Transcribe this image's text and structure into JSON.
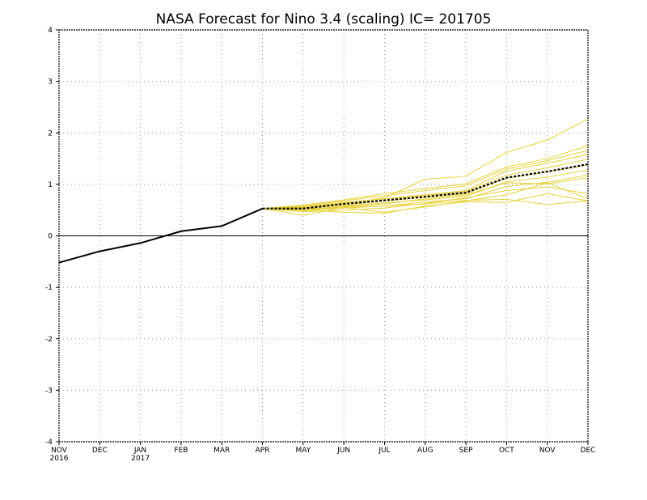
{
  "chart_data": {
    "type": "line",
    "title": "NASA Forecast for Nino 3.4 (scaling) IC= 201705",
    "xlabel": "",
    "ylabel": "",
    "ylim": [
      -4,
      4
    ],
    "yticks": [
      "-4",
      "-3",
      "-2",
      "-1",
      "0",
      "1",
      "2",
      "3",
      "4"
    ],
    "x_ticks": [
      {
        "label": "NOV",
        "sub": "2016"
      },
      {
        "label": "DEC",
        "sub": ""
      },
      {
        "label": "JAN",
        "sub": "2017"
      },
      {
        "label": "FEB",
        "sub": ""
      },
      {
        "label": "MAR",
        "sub": ""
      },
      {
        "label": "APR",
        "sub": ""
      },
      {
        "label": "MAY",
        "sub": ""
      },
      {
        "label": "JUN",
        "sub": ""
      },
      {
        "label": "JUL",
        "sub": ""
      },
      {
        "label": "AUG",
        "sub": ""
      },
      {
        "label": "SEP",
        "sub": ""
      },
      {
        "label": "OCT",
        "sub": ""
      },
      {
        "label": "NOV",
        "sub": ""
      },
      {
        "label": "DEC",
        "sub": ""
      }
    ],
    "grid": true,
    "zero_line": true,
    "colors": {
      "observed": "#000000",
      "members": "#e8d23a",
      "mean": "#000000"
    },
    "observed": {
      "x": [
        "2016-11",
        "2016-12",
        "2017-01",
        "2017-02",
        "2017-03",
        "2017-04"
      ],
      "y": [
        -0.52,
        -0.3,
        -0.14,
        0.09,
        0.19,
        0.53
      ]
    },
    "ensemble_x": [
      "2017-04",
      "2017-05",
      "2017-06",
      "2017-07",
      "2017-08",
      "2017-09",
      "2017-10",
      "2017-11",
      "2017-12"
    ],
    "ensemble_members": [
      [
        0.53,
        0.56,
        0.62,
        0.74,
        1.1,
        1.16,
        1.62,
        1.86,
        2.27
      ],
      [
        0.53,
        0.6,
        0.7,
        0.82,
        0.92,
        1.01,
        1.34,
        1.5,
        1.75
      ],
      [
        0.53,
        0.58,
        0.68,
        0.78,
        0.88,
        0.97,
        1.3,
        1.46,
        1.66
      ],
      [
        0.53,
        0.55,
        0.64,
        0.72,
        0.8,
        0.88,
        1.26,
        1.41,
        1.58
      ],
      [
        0.53,
        0.57,
        0.65,
        0.72,
        0.78,
        0.86,
        1.18,
        1.32,
        1.49
      ],
      [
        0.53,
        0.54,
        0.6,
        0.68,
        0.75,
        0.82,
        1.12,
        1.24,
        1.38
      ],
      [
        0.53,
        0.5,
        0.58,
        0.64,
        0.7,
        0.77,
        1.05,
        1.14,
        1.28
      ],
      [
        0.53,
        0.49,
        0.54,
        0.58,
        0.66,
        0.72,
        0.96,
        1.04,
        1.18
      ],
      [
        0.53,
        0.52,
        0.57,
        0.62,
        0.72,
        0.8,
        1.03,
        1.01,
        1.13
      ],
      [
        0.53,
        0.47,
        0.5,
        0.54,
        0.63,
        0.74,
        0.88,
        0.95,
        0.82
      ],
      [
        0.53,
        0.4,
        0.55,
        0.46,
        0.56,
        0.68,
        0.8,
        1.03,
        0.72
      ],
      [
        0.53,
        0.5,
        0.56,
        0.58,
        0.62,
        0.69,
        0.71,
        0.61,
        0.68
      ],
      [
        0.53,
        0.5,
        0.46,
        0.44,
        0.58,
        0.66,
        0.65,
        0.82,
        0.68
      ]
    ],
    "ensemble_mean": [
      0.53,
      0.53,
      0.62,
      0.69,
      0.76,
      0.84,
      1.13,
      1.25,
      1.39
    ]
  }
}
